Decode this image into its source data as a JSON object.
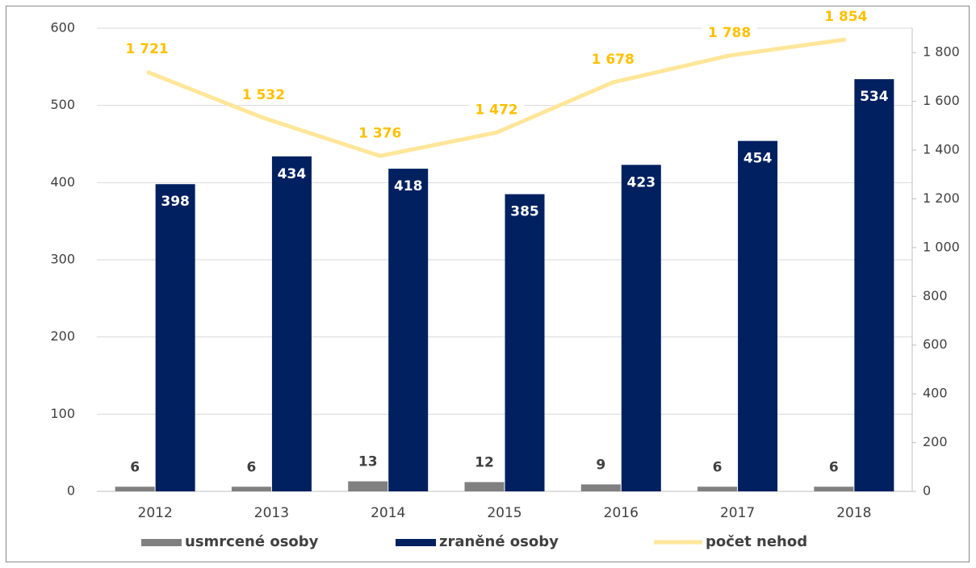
{
  "chart_data": {
    "type": "bar",
    "categories": [
      "2012",
      "2013",
      "2014",
      "2015",
      "2016",
      "2017",
      "2018"
    ],
    "series": [
      {
        "name": "usmrcené osoby",
        "color": "#808080",
        "values": [
          6,
          6,
          13,
          12,
          9,
          6,
          6
        ]
      },
      {
        "name": "zraněné osoby",
        "color": "#002060",
        "values": [
          398,
          434,
          418,
          385,
          423,
          454,
          534
        ]
      },
      {
        "name": "počet nehod",
        "type": "line",
        "axis": "y2",
        "color": "#ffe699",
        "label_color": "#ffc000",
        "values": [
          1721,
          1532,
          1376,
          1472,
          1678,
          1788,
          1854
        ],
        "value_labels": [
          "1 721",
          "1 532",
          "1 376",
          "1 472",
          "1 678",
          "1 788",
          "1 854"
        ]
      }
    ],
    "ylim": [
      0,
      600
    ],
    "yticks": [
      0,
      100,
      200,
      300,
      400,
      500,
      600
    ],
    "y2lim": [
      0,
      1900
    ],
    "y2ticks": [
      0,
      200,
      400,
      600,
      800,
      {
        "value": 1000,
        "label": "1 000"
      },
      {
        "value": 1200,
        "label": "1 200"
      },
      {
        "value": 1400,
        "label": "1 400"
      },
      {
        "value": 1600,
        "label": "1 600"
      },
      {
        "value": 1800,
        "label": "1 800"
      }
    ],
    "grid": true,
    "legend": "bottom"
  }
}
